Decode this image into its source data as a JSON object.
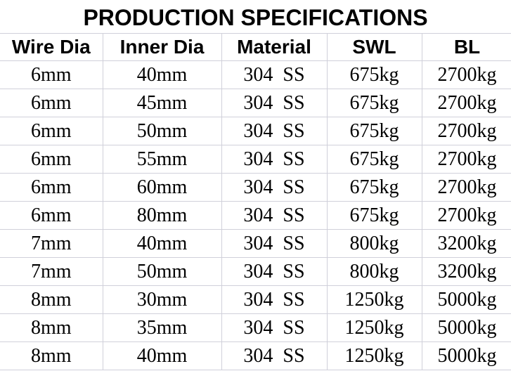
{
  "title": "PRODUCTION SPECIFICATIONS",
  "columns": [
    "Wire Dia",
    "Inner Dia",
    "Material",
    "SWL",
    "BL"
  ],
  "rows": [
    [
      "6mm",
      "40mm",
      "304  SS",
      "675kg",
      "2700kg"
    ],
    [
      "6mm",
      "45mm",
      "304  SS",
      "675kg",
      "2700kg"
    ],
    [
      "6mm",
      "50mm",
      "304  SS",
      "675kg",
      "2700kg"
    ],
    [
      "6mm",
      "55mm",
      "304  SS",
      "675kg",
      "2700kg"
    ],
    [
      "6mm",
      "60mm",
      "304  SS",
      "675kg",
      "2700kg"
    ],
    [
      "6mm",
      "80mm",
      "304  SS",
      "675kg",
      "2700kg"
    ],
    [
      "7mm",
      "40mm",
      "304  SS",
      "800kg",
      "3200kg"
    ],
    [
      "7mm",
      "50mm",
      "304  SS",
      "800kg",
      "3200kg"
    ],
    [
      "8mm",
      "30mm",
      "304  SS",
      "1250kg",
      "5000kg"
    ],
    [
      "8mm",
      "35mm",
      "304  SS",
      "1250kg",
      "5000kg"
    ],
    [
      "8mm",
      "40mm",
      "304  SS",
      "1250kg",
      "5000kg"
    ]
  ]
}
